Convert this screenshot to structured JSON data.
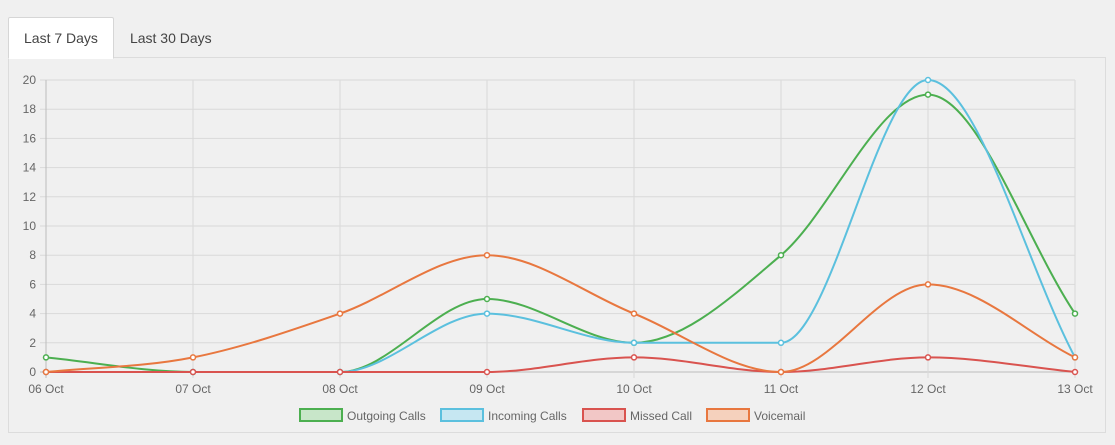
{
  "tabs": [
    {
      "label": "Last 7 Days",
      "active": true
    },
    {
      "label": "Last 30 Days",
      "active": false
    }
  ],
  "chart_data": {
    "type": "line",
    "categories": [
      "06 Oct",
      "07 Oct",
      "08 Oct",
      "09 Oct",
      "10 Oct",
      "11 Oct",
      "12 Oct",
      "13 Oct"
    ],
    "ylim": [
      0,
      20
    ],
    "yticks": [
      0,
      2,
      4,
      6,
      8,
      10,
      12,
      14,
      16,
      18,
      20
    ],
    "grid": true,
    "legend_position": "bottom",
    "series": [
      {
        "name": "Outgoing Calls",
        "color": "#4caf50",
        "fill": "#c8e6c9",
        "values": [
          1,
          0,
          0,
          5,
          2,
          8,
          19,
          4
        ]
      },
      {
        "name": "Incoming Calls",
        "color": "#5bc0de",
        "fill": "#c6e7f2",
        "values": [
          0,
          0,
          0,
          4,
          2,
          2,
          20,
          1
        ]
      },
      {
        "name": "Missed Call",
        "color": "#d9534f",
        "fill": "#f2c7c6",
        "values": [
          0,
          0,
          0,
          0,
          1,
          0,
          1,
          0
        ]
      },
      {
        "name": "Voicemail",
        "color": "#e8773f",
        "fill": "#f5d1bd",
        "values": [
          0,
          1,
          4,
          8,
          4,
          0,
          6,
          1
        ]
      }
    ]
  }
}
